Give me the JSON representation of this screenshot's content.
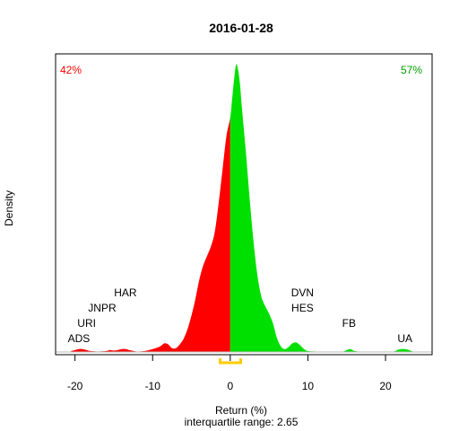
{
  "chart_data": {
    "type": "area",
    "title": "2016-01-28",
    "xlabel": "Return (%)",
    "ylabel": "Density",
    "subtitle": "interquartile range: 2.65",
    "xlim": [
      -22.5,
      26
    ],
    "xticks": [
      -20,
      -10,
      0,
      10,
      20
    ],
    "neg_pct": "42%",
    "pos_pct": "57%",
    "colors": {
      "negative": "#ff0000",
      "positive": "#00e000",
      "iqr": "#ffcc00"
    },
    "iqr": [
      -1.3,
      1.35
    ],
    "density": {
      "x": [
        -20.5,
        -20,
        -19.5,
        -19,
        -18.5,
        -18,
        -17,
        -16,
        -15.5,
        -15,
        -14.5,
        -14,
        -13.5,
        -13,
        -12,
        -11,
        -10,
        -9,
        -8.5,
        -8,
        -7.5,
        -7,
        -6.5,
        -6,
        -5.5,
        -5,
        -4.5,
        -4,
        -3.5,
        -3,
        -2.5,
        -2,
        -1.5,
        -1,
        -0.5,
        0,
        0.25,
        0.5,
        0.75,
        1,
        1.25,
        1.5,
        2,
        2.5,
        3,
        3.5,
        4,
        4.5,
        5,
        5.5,
        6,
        6.5,
        7,
        7.5,
        8,
        8.5,
        9,
        9.5,
        10,
        11,
        13,
        14.5,
        15,
        15.5,
        16,
        17,
        19,
        21,
        21.5,
        22,
        22.5,
        23,
        23.5
      ],
      "y": [
        0.001,
        0.002,
        0.003,
        0.003,
        0.002,
        0.001,
        0.0005,
        0.001,
        0.002,
        0.0015,
        0.002,
        0.003,
        0.003,
        0.002,
        0.0005,
        0.001,
        0.003,
        0.006,
        0.009,
        0.008,
        0.004,
        0.004,
        0.008,
        0.014,
        0.024,
        0.038,
        0.055,
        0.075,
        0.09,
        0.1,
        0.11,
        0.125,
        0.155,
        0.19,
        0.225,
        0.245,
        0.265,
        0.285,
        0.3,
        0.295,
        0.28,
        0.255,
        0.21,
        0.16,
        0.115,
        0.08,
        0.058,
        0.048,
        0.04,
        0.03,
        0.015,
        0.006,
        0.003,
        0.005,
        0.009,
        0.01,
        0.007,
        0.003,
        0.001,
        0.0005,
        0.0003,
        0.0005,
        0.002,
        0.003,
        0.001,
        0.0003,
        0.0003,
        0.0005,
        0.002,
        0.003,
        0.003,
        0.002,
        0.0005
      ],
      "ymax": 0.3
    },
    "tickers": [
      {
        "label": "ADS",
        "x": -19.5,
        "level": 0
      },
      {
        "label": "URI",
        "x": -18.5,
        "level": 1
      },
      {
        "label": "JNPR",
        "x": -16.5,
        "level": 2
      },
      {
        "label": "HAR",
        "x": -13.5,
        "level": 3
      },
      {
        "label": "HES",
        "x": 9.3,
        "level": 2
      },
      {
        "label": "DVN",
        "x": 9.3,
        "level": 3
      },
      {
        "label": "FB",
        "x": 15.3,
        "level": 1
      },
      {
        "label": "UA",
        "x": 22.5,
        "level": 0
      }
    ]
  }
}
